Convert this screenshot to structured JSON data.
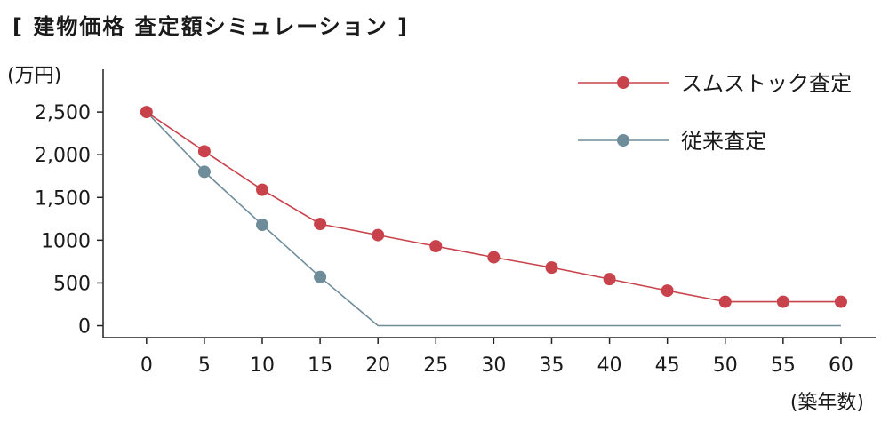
{
  "chart_data": {
    "type": "line",
    "title": "[ 建物価格 査定額シミュレーション ]",
    "ylabel": "(万円)",
    "xlabel": "(築年数)",
    "x": [
      0,
      5,
      10,
      15,
      20,
      25,
      30,
      35,
      40,
      45,
      50,
      55,
      60
    ],
    "xlim": [
      -3.75,
      63
    ],
    "ylim": [
      -140,
      3000
    ],
    "yticks": [
      0,
      500,
      1000,
      1500,
      2000,
      2500
    ],
    "ytick_labels": [
      "0",
      "500",
      "1000",
      "1,500",
      "2,000",
      "2,500"
    ],
    "xtick_labels": [
      "0",
      "5",
      "10",
      "15",
      "20",
      "25",
      "30",
      "35",
      "40",
      "45",
      "50",
      "55",
      "60"
    ],
    "legend_position": "top-right",
    "grid": false,
    "series": [
      {
        "name": "スムストック査定",
        "color": "#c8424c",
        "values": [
          2500,
          2040,
          1590,
          1190,
          1060,
          930,
          800,
          680,
          545,
          410,
          280,
          280,
          280
        ],
        "markers_at": [
          0,
          5,
          10,
          15,
          20,
          25,
          30,
          35,
          40,
          45,
          50,
          55,
          60
        ]
      },
      {
        "name": "従来査定",
        "color": "#6e8c9a",
        "values": [
          2500,
          1800,
          1180,
          570,
          0,
          0,
          0,
          0,
          0,
          0,
          0,
          0,
          0
        ],
        "markers_at": [
          5,
          10,
          15
        ]
      }
    ]
  }
}
